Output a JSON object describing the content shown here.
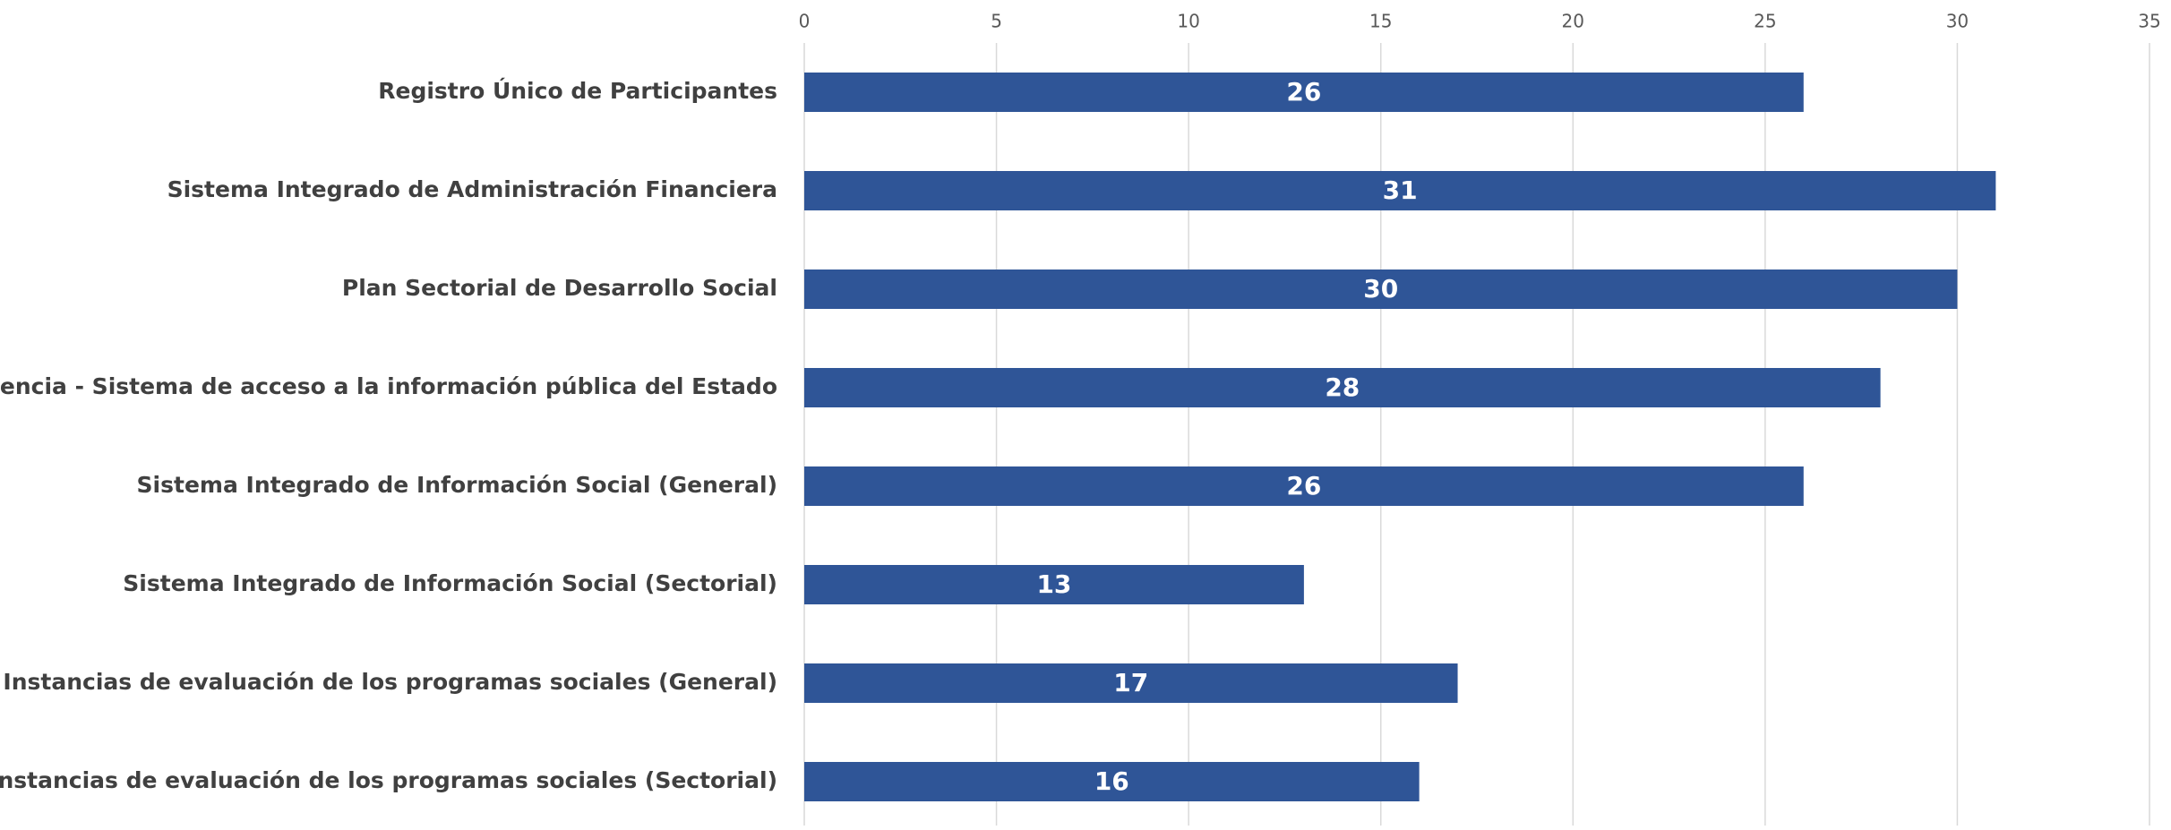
{
  "chart_data": {
    "type": "bar",
    "orientation": "horizontal",
    "title": "",
    "xlabel": "",
    "ylabel": "",
    "categories": [
      "Registro Único de Participantes",
      "Sistema Integrado de Administración Financiera",
      "Plan Sectorial de Desarrollo Social",
      "Transparencia - Sistema de acceso a la información pública del Estado",
      "Sistema Integrado de Información Social (General)",
      "Sistema Integrado de Información Social (Sectorial)",
      "Instancias de evaluación de los programas sociales (General)",
      "Instancias de evaluación de los programas sociales (Sectorial)"
    ],
    "values": [
      26,
      31,
      30,
      28,
      26,
      13,
      17,
      16
    ],
    "data_labels": [
      "26",
      "31",
      "30",
      "28",
      "26",
      "13",
      "17",
      "16"
    ],
    "xlim": [
      0,
      35
    ],
    "x_ticks": [
      0,
      5,
      10,
      15,
      20,
      25,
      30,
      35
    ],
    "x_tick_labels": [
      "0",
      "5",
      "10",
      "15",
      "20",
      "25",
      "30",
      "35"
    ],
    "axis_position": "top",
    "grid": true,
    "legend": "none",
    "bar_color": "#2f5597",
    "gridline_color": "#d9d9d9",
    "data_label_color": "#ffffff",
    "category_label_color": "#404040",
    "tick_label_color": "#595959"
  }
}
